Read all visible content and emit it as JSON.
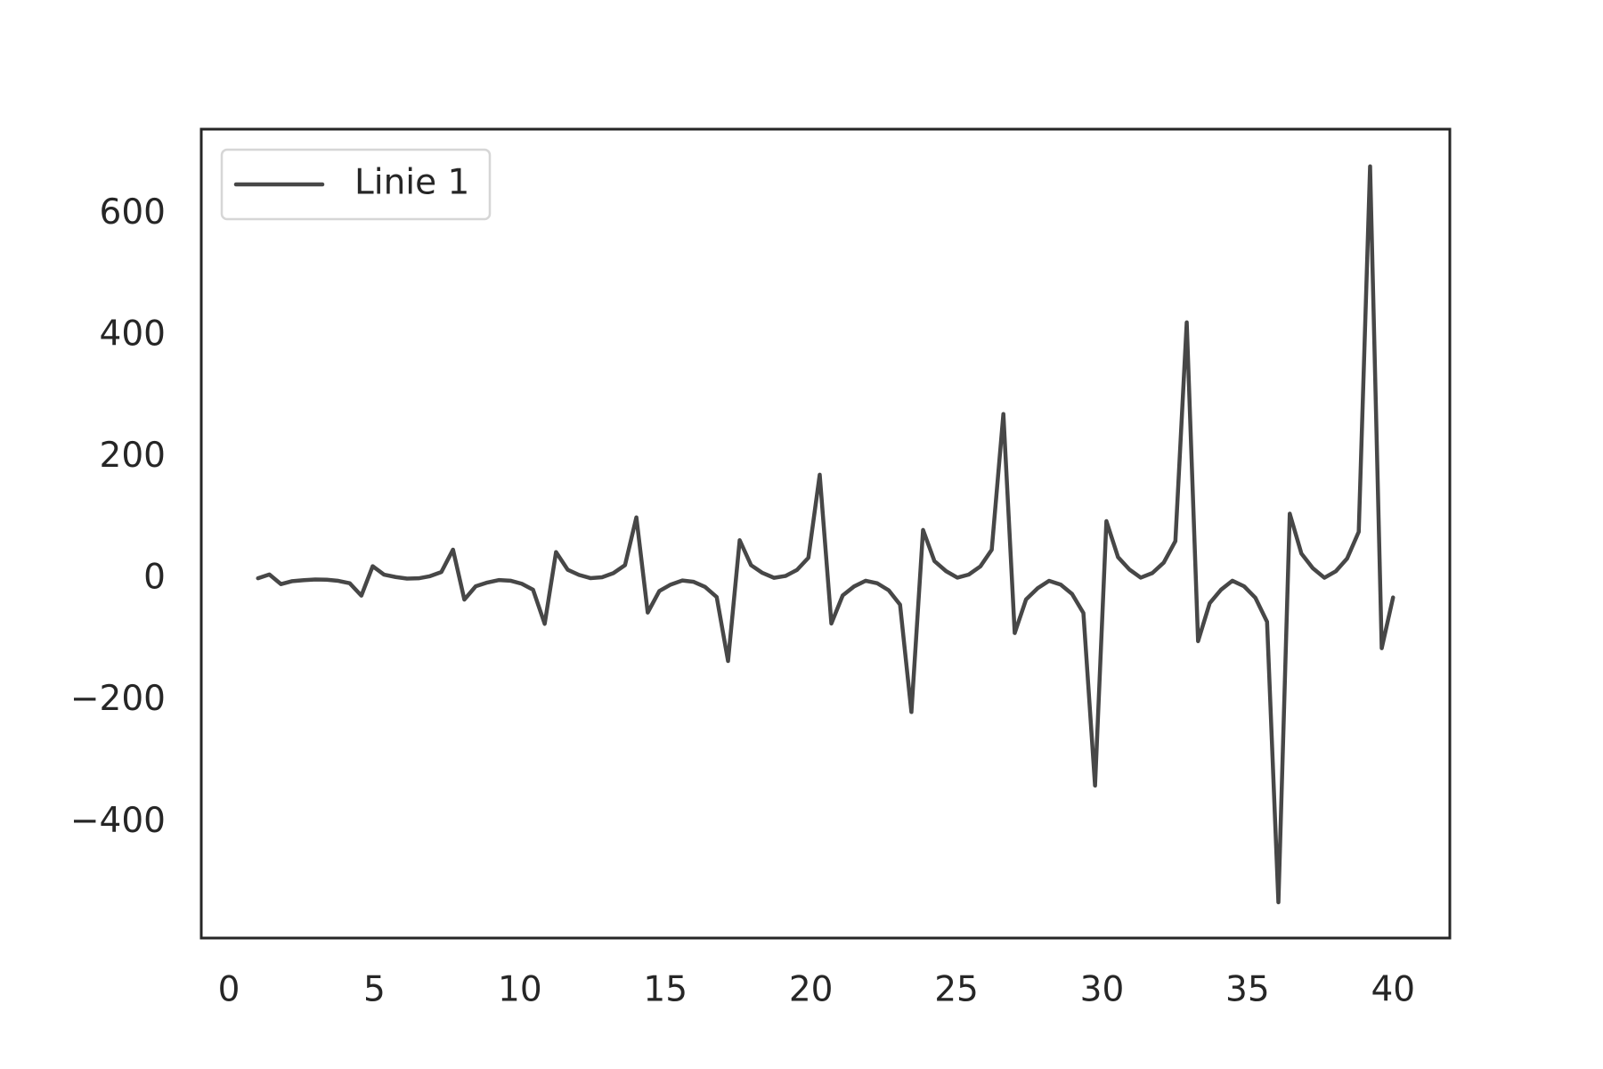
{
  "chart_data": {
    "type": "line",
    "x": [
      1.0,
      1.39,
      1.79,
      2.18,
      2.58,
      2.97,
      3.36,
      3.76,
      4.15,
      4.55,
      4.94,
      5.33,
      5.73,
      6.12,
      6.52,
      6.91,
      7.3,
      7.7,
      8.09,
      8.48,
      8.88,
      9.27,
      9.67,
      10.06,
      10.45,
      10.85,
      11.24,
      11.64,
      12.03,
      12.42,
      12.82,
      13.21,
      13.61,
      14.0,
      14.39,
      14.79,
      15.18,
      15.58,
      15.97,
      16.36,
      16.76,
      17.15,
      17.55,
      17.94,
      18.33,
      18.73,
      19.12,
      19.52,
      19.91,
      20.3,
      20.7,
      21.09,
      21.48,
      21.88,
      22.27,
      22.67,
      23.06,
      23.45,
      23.85,
      24.24,
      24.64,
      25.03,
      25.42,
      25.82,
      26.21,
      26.61,
      27.0,
      27.39,
      27.79,
      28.18,
      28.58,
      28.97,
      29.36,
      29.76,
      30.15,
      30.55,
      30.94,
      31.33,
      31.73,
      32.12,
      32.52,
      32.91,
      33.3,
      33.7,
      34.09,
      34.48,
      34.88,
      35.27,
      35.67,
      36.06,
      36.45,
      36.85,
      37.24,
      37.64,
      38.03,
      38.42,
      38.82,
      39.21,
      39.61,
      40.0
    ],
    "series": [
      {
        "name": "Linie 1",
        "color": "#474747",
        "values": [
          1.6,
          7.8,
          -8.1,
          -3.1,
          -1.6,
          -0.5,
          -0.8,
          -2.7,
          -6.6,
          -27.0,
          21.4,
          7.5,
          3.6,
          1.0,
          1.5,
          5.0,
          11.9,
          48.7,
          -33.5,
          -11.6,
          -5.4,
          -1.4,
          -2.4,
          -7.4,
          -17.3,
          -73.4,
          44.6,
          15.6,
          7.1,
          1.8,
          3.3,
          10.0,
          23.2,
          101.7,
          -54.8,
          -19.4,
          -8.8,
          -2.1,
          -4.3,
          -12.6,
          -29.2,
          -134.5,
          64.2,
          23.1,
          10.4,
          2.3,
          5.3,
          15.3,
          35.3,
          171.8,
          -72.9,
          -26.6,
          -11.9,
          -2.5,
          -6.5,
          -18.2,
          -41.8,
          -218.4,
          81.0,
          29.9,
          13.3,
          2.6,
          7.6,
          21.1,
          48.5,
          271.6,
          -88.5,
          -33.2,
          -14.7,
          -2.6,
          -8.9,
          -24.2,
          -55.5,
          -339.3,
          95.5,
          36.3,
          16.0,
          2.6,
          10.2,
          27.3,
          62.6,
          422.3,
          -101.8,
          -39.3,
          -17.2,
          -2.5,
          -11.6,
          -30.6,
          -70.0,
          -531.2,
          107.7,
          42.2,
          18.3,
          2.4,
          13.0,
          34.0,
          77.9,
          678.9,
          -113.4,
          -30.0
        ]
      }
    ],
    "xlim": [
      -0.95,
      41.95
    ],
    "ylim": [
      -590,
      740
    ],
    "xticks": [
      0,
      5,
      10,
      15,
      20,
      25,
      30,
      35,
      40
    ],
    "yticks": [
      {
        "value": -400,
        "label": "−400"
      },
      {
        "value": -200,
        "label": "−200"
      },
      0,
      200,
      400,
      600
    ],
    "grid": false,
    "legend": "upper left"
  }
}
